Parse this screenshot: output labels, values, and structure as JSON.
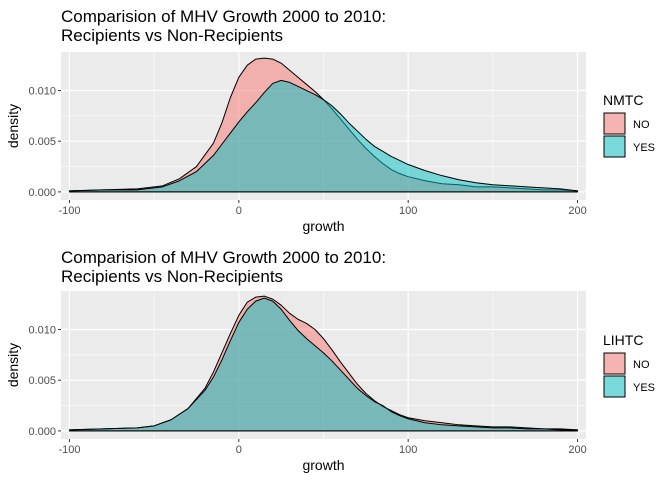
{
  "chart_data": [
    {
      "type": "area",
      "title_lines": [
        "Comparision of MHV Growth 2000 to 2010:",
        "Recipients vs Non-Recipients"
      ],
      "xlabel": "growth",
      "ylabel": "density",
      "xlim": [
        -105,
        205
      ],
      "ylim": [
        -0.0008,
        0.0138
      ],
      "x_ticks": [
        -100,
        0,
        100,
        200
      ],
      "x_tick_labels": [
        "-100",
        "0",
        "100",
        "200"
      ],
      "y_ticks": [
        0,
        0.005,
        0.01
      ],
      "y_tick_labels": [
        "0.000",
        "0.005",
        "0.010"
      ],
      "grid": true,
      "legend": {
        "title": "NMTC",
        "position": "right",
        "entries": [
          "NO",
          "YES"
        ]
      },
      "series": [
        {
          "name": "NO",
          "color": "#F8766D",
          "points": [
            [
              -100,
              0.0001
            ],
            [
              -80,
              0.0002
            ],
            [
              -60,
              0.0003
            ],
            [
              -45,
              0.0006
            ],
            [
              -35,
              0.0013
            ],
            [
              -25,
              0.0025
            ],
            [
              -15,
              0.0048
            ],
            [
              -10,
              0.0068
            ],
            [
              -5,
              0.0093
            ],
            [
              0,
              0.0113
            ],
            [
              5,
              0.0125
            ],
            [
              10,
              0.0131
            ],
            [
              15,
              0.0132
            ],
            [
              20,
              0.0131
            ],
            [
              25,
              0.0127
            ],
            [
              30,
              0.012
            ],
            [
              35,
              0.0113
            ],
            [
              40,
              0.0106
            ],
            [
              45,
              0.0099
            ],
            [
              50,
              0.0091
            ],
            [
              55,
              0.0082
            ],
            [
              60,
              0.0072
            ],
            [
              65,
              0.0062
            ],
            [
              70,
              0.0052
            ],
            [
              75,
              0.0043
            ],
            [
              80,
              0.0035
            ],
            [
              85,
              0.0028
            ],
            [
              90,
              0.0022
            ],
            [
              95,
              0.0018
            ],
            [
              100,
              0.0015
            ],
            [
              110,
              0.0011
            ],
            [
              120,
              0.0008
            ],
            [
              130,
              0.0007
            ],
            [
              140,
              0.0005
            ],
            [
              150,
              0.0005
            ],
            [
              160,
              0.0004
            ],
            [
              170,
              0.0003
            ],
            [
              180,
              0.0002
            ],
            [
              190,
              0.0002
            ],
            [
              200,
              0.0001
            ]
          ]
        },
        {
          "name": "YES",
          "color": "#00BFC4",
          "points": [
            [
              -100,
              0.0001
            ],
            [
              -80,
              0.0002
            ],
            [
              -60,
              0.0002
            ],
            [
              -45,
              0.0005
            ],
            [
              -35,
              0.0011
            ],
            [
              -25,
              0.002
            ],
            [
              -15,
              0.0036
            ],
            [
              -10,
              0.0047
            ],
            [
              -5,
              0.0058
            ],
            [
              0,
              0.0069
            ],
            [
              5,
              0.0079
            ],
            [
              10,
              0.0088
            ],
            [
              15,
              0.0098
            ],
            [
              20,
              0.0107
            ],
            [
              25,
              0.011
            ],
            [
              30,
              0.0108
            ],
            [
              35,
              0.0104
            ],
            [
              40,
              0.01
            ],
            [
              45,
              0.0096
            ],
            [
              50,
              0.0091
            ],
            [
              55,
              0.0085
            ],
            [
              60,
              0.0077
            ],
            [
              65,
              0.0068
            ],
            [
              70,
              0.006
            ],
            [
              75,
              0.0052
            ],
            [
              80,
              0.0045
            ],
            [
              85,
              0.004
            ],
            [
              90,
              0.0035
            ],
            [
              95,
              0.0031
            ],
            [
              100,
              0.0027
            ],
            [
              110,
              0.0021
            ],
            [
              120,
              0.0016
            ],
            [
              130,
              0.0012
            ],
            [
              140,
              0.0009
            ],
            [
              150,
              0.0007
            ],
            [
              160,
              0.0006
            ],
            [
              170,
              0.0005
            ],
            [
              180,
              0.0004
            ],
            [
              190,
              0.0003
            ],
            [
              200,
              0.0001
            ]
          ]
        }
      ]
    },
    {
      "type": "area",
      "title_lines": [
        "Comparision of MHV Growth 2000 to 2010:",
        "Recipients vs Non-Recipients"
      ],
      "xlabel": "growth",
      "ylabel": "density",
      "xlim": [
        -105,
        205
      ],
      "ylim": [
        -0.0008,
        0.0138
      ],
      "x_ticks": [
        -100,
        0,
        100,
        200
      ],
      "x_tick_labels": [
        "-100",
        "0",
        "100",
        "200"
      ],
      "y_ticks": [
        0,
        0.005,
        0.01
      ],
      "y_tick_labels": [
        "0.000",
        "0.005",
        "0.010"
      ],
      "grid": true,
      "legend": {
        "title": "LIHTC",
        "position": "right",
        "entries": [
          "NO",
          "YES"
        ]
      },
      "series": [
        {
          "name": "NO",
          "color": "#F8766D",
          "points": [
            [
              -100,
              0.0001
            ],
            [
              -80,
              0.0002
            ],
            [
              -60,
              0.0003
            ],
            [
              -50,
              0.0005
            ],
            [
              -40,
              0.0011
            ],
            [
              -30,
              0.0022
            ],
            [
              -20,
              0.0042
            ],
            [
              -15,
              0.0058
            ],
            [
              -10,
              0.0077
            ],
            [
              -5,
              0.0096
            ],
            [
              0,
              0.0114
            ],
            [
              5,
              0.0127
            ],
            [
              10,
              0.0132
            ],
            [
              15,
              0.0133
            ],
            [
              20,
              0.013
            ],
            [
              25,
              0.0124
            ],
            [
              30,
              0.0116
            ],
            [
              35,
              0.011
            ],
            [
              40,
              0.0106
            ],
            [
              45,
              0.01
            ],
            [
              50,
              0.0091
            ],
            [
              55,
              0.008
            ],
            [
              60,
              0.0068
            ],
            [
              65,
              0.0057
            ],
            [
              70,
              0.0046
            ],
            [
              75,
              0.0037
            ],
            [
              80,
              0.003
            ],
            [
              85,
              0.0024
            ],
            [
              90,
              0.002
            ],
            [
              95,
              0.0016
            ],
            [
              100,
              0.0013
            ],
            [
              110,
              0.001
            ],
            [
              120,
              0.0008
            ],
            [
              130,
              0.0006
            ],
            [
              140,
              0.0005
            ],
            [
              150,
              0.0004
            ],
            [
              160,
              0.0004
            ],
            [
              170,
              0.0003
            ],
            [
              180,
              0.0002
            ],
            [
              190,
              0.0002
            ],
            [
              200,
              0.0001
            ]
          ]
        },
        {
          "name": "YES",
          "color": "#00BFC4",
          "points": [
            [
              -100,
              0.0001
            ],
            [
              -80,
              0.0002
            ],
            [
              -60,
              0.0003
            ],
            [
              -50,
              0.0005
            ],
            [
              -40,
              0.0011
            ],
            [
              -30,
              0.0022
            ],
            [
              -20,
              0.004
            ],
            [
              -15,
              0.0053
            ],
            [
              -10,
              0.007
            ],
            [
              -5,
              0.0089
            ],
            [
              0,
              0.0107
            ],
            [
              5,
              0.012
            ],
            [
              10,
              0.0128
            ],
            [
              15,
              0.0131
            ],
            [
              20,
              0.0128
            ],
            [
              25,
              0.012
            ],
            [
              30,
              0.0109
            ],
            [
              35,
              0.0099
            ],
            [
              40,
              0.0091
            ],
            [
              45,
              0.0084
            ],
            [
              50,
              0.0077
            ],
            [
              55,
              0.0069
            ],
            [
              60,
              0.006
            ],
            [
              65,
              0.0051
            ],
            [
              70,
              0.0042
            ],
            [
              75,
              0.0035
            ],
            [
              80,
              0.0029
            ],
            [
              85,
              0.0025
            ],
            [
              90,
              0.0019
            ],
            [
              95,
              0.0015
            ],
            [
              100,
              0.0012
            ],
            [
              110,
              0.0008
            ],
            [
              120,
              0.0006
            ],
            [
              130,
              0.0005
            ],
            [
              140,
              0.0004
            ],
            [
              150,
              0.0003
            ],
            [
              160,
              0.0003
            ],
            [
              170,
              0.0002
            ],
            [
              180,
              0.0002
            ],
            [
              190,
              0.0001
            ],
            [
              200,
              0.0001
            ]
          ]
        }
      ]
    }
  ]
}
